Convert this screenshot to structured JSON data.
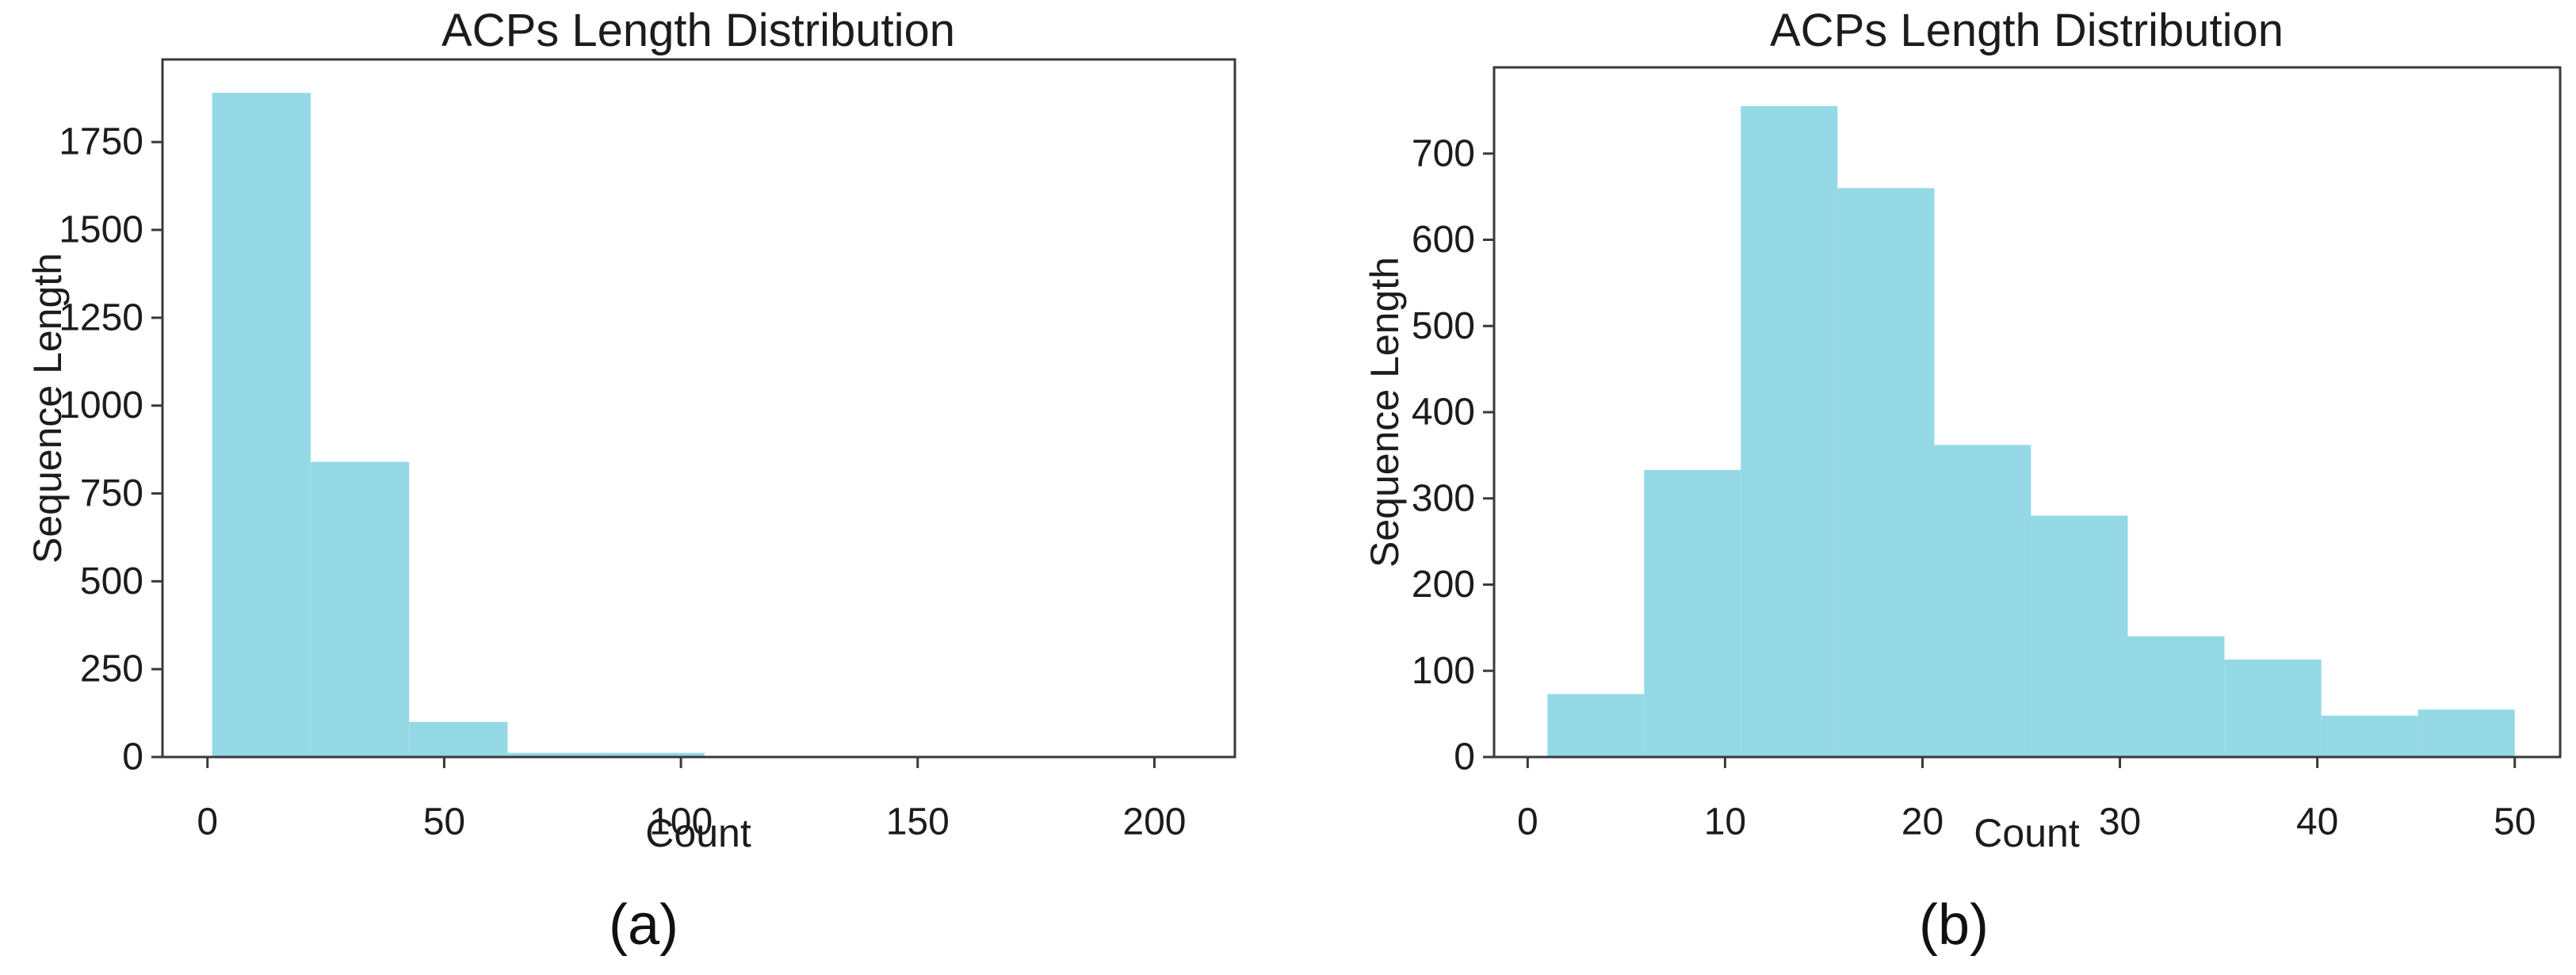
{
  "figure": {
    "background_color": "#ffffff",
    "text_color": "#1c1c1c",
    "spine_color": "#3a3a3a",
    "bar_color": "#95d8e6"
  },
  "chart_data": [
    {
      "type": "bar",
      "subtype": "histogram",
      "panel_label": "(a)",
      "title": "ACPs Length Distribution",
      "xlabel": "Count",
      "ylabel": "Sequence Length",
      "bar_color": "#95d8e6",
      "grid": false,
      "legend": null,
      "bin_edges": [
        1,
        21.8,
        42.6,
        63.4,
        84.2,
        105,
        125.8,
        146.6,
        167.4,
        188.2,
        209
      ],
      "counts": [
        1890,
        840,
        100,
        12,
        12,
        0,
        0,
        0,
        0,
        0
      ],
      "x_ticks": [
        0,
        50,
        100,
        150,
        200
      ],
      "y_ticks": [
        0,
        250,
        500,
        750,
        1000,
        1250,
        1500,
        1750
      ],
      "xlim": [
        -9.5,
        217
      ],
      "ylim": [
        0,
        1985
      ]
    },
    {
      "type": "bar",
      "subtype": "histogram",
      "panel_label": "(b)",
      "title": "ACPs Length Distribution",
      "xlabel": "Count",
      "ylabel": "Sequence Length",
      "bar_color": "#95d8e6",
      "grid": false,
      "legend": null,
      "bin_edges": [
        1,
        5.9,
        10.8,
        15.7,
        20.6,
        25.5,
        30.4,
        35.3,
        40.2,
        45.1,
        50
      ],
      "counts": [
        73,
        333,
        755,
        660,
        362,
        280,
        140,
        113,
        48,
        55
      ],
      "x_ticks": [
        0,
        10,
        20,
        30,
        40,
        50
      ],
      "y_ticks": [
        0,
        100,
        200,
        300,
        400,
        500,
        600,
        700
      ],
      "xlim": [
        -1.7,
        52.3
      ],
      "ylim": [
        0,
        800
      ]
    }
  ]
}
